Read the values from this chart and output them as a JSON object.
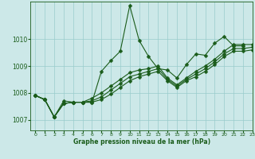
{
  "title": "Graphe pression niveau de la mer (hPa)",
  "bg_color": "#cce8e8",
  "line_color": "#1a5c1a",
  "grid_color": "#99cccc",
  "xlim": [
    -0.5,
    23
  ],
  "ylim": [
    1006.6,
    1011.4
  ],
  "yticks": [
    1007,
    1008,
    1009,
    1010
  ],
  "xticks": [
    0,
    1,
    2,
    3,
    4,
    5,
    6,
    7,
    8,
    9,
    10,
    11,
    12,
    13,
    14,
    15,
    16,
    17,
    18,
    19,
    20,
    21,
    22,
    23
  ],
  "series": [
    {
      "x": [
        0,
        1,
        2,
        3,
        4,
        5,
        6,
        7,
        8,
        9,
        10,
        11,
        12,
        13,
        14,
        15,
        16,
        17,
        18,
        19,
        20,
        21,
        22
      ],
      "y": [
        1007.9,
        1007.75,
        1007.1,
        1007.7,
        1007.65,
        1007.65,
        1007.65,
        1008.8,
        1009.2,
        1009.55,
        1011.25,
        1009.95,
        1009.35,
        1008.9,
        1008.85,
        1008.55,
        1009.05,
        1009.45,
        1009.4,
        1009.85,
        1010.1,
        1009.75,
        1009.75
      ]
    },
    {
      "x": [
        0,
        1,
        2,
        3,
        4,
        5,
        6,
        7,
        8,
        9,
        10,
        11,
        12,
        13,
        14,
        15,
        16,
        17,
        18,
        19,
        20,
        21,
        22,
        23
      ],
      "y": [
        1007.9,
        1007.75,
        1007.1,
        1007.6,
        1007.65,
        1007.65,
        1007.8,
        1008.0,
        1008.25,
        1008.5,
        1008.75,
        1008.85,
        1008.9,
        1009.0,
        1008.55,
        1008.3,
        1008.55,
        1008.8,
        1009.0,
        1009.25,
        1009.55,
        1009.8,
        1009.8,
        1009.8
      ]
    },
    {
      "x": [
        0,
        1,
        2,
        3,
        4,
        5,
        6,
        7,
        8,
        9,
        10,
        11,
        12,
        13,
        14,
        15,
        16,
        17,
        18,
        19,
        20,
        21,
        22,
        23
      ],
      "y": [
        1007.9,
        1007.75,
        1007.1,
        1007.6,
        1007.65,
        1007.65,
        1007.7,
        1007.85,
        1008.1,
        1008.35,
        1008.6,
        1008.7,
        1008.8,
        1008.9,
        1008.5,
        1008.25,
        1008.5,
        1008.7,
        1008.9,
        1009.15,
        1009.45,
        1009.65,
        1009.65,
        1009.7
      ]
    },
    {
      "x": [
        0,
        1,
        2,
        3,
        4,
        5,
        6,
        7,
        8,
        9,
        10,
        11,
        12,
        13,
        14,
        15,
        16,
        17,
        18,
        19,
        20,
        21,
        22,
        23
      ],
      "y": [
        1007.9,
        1007.75,
        1007.1,
        1007.6,
        1007.65,
        1007.65,
        1007.65,
        1007.75,
        1007.95,
        1008.2,
        1008.45,
        1008.6,
        1008.7,
        1008.8,
        1008.45,
        1008.2,
        1008.45,
        1008.6,
        1008.8,
        1009.05,
        1009.35,
        1009.55,
        1009.55,
        1009.6
      ]
    }
  ]
}
